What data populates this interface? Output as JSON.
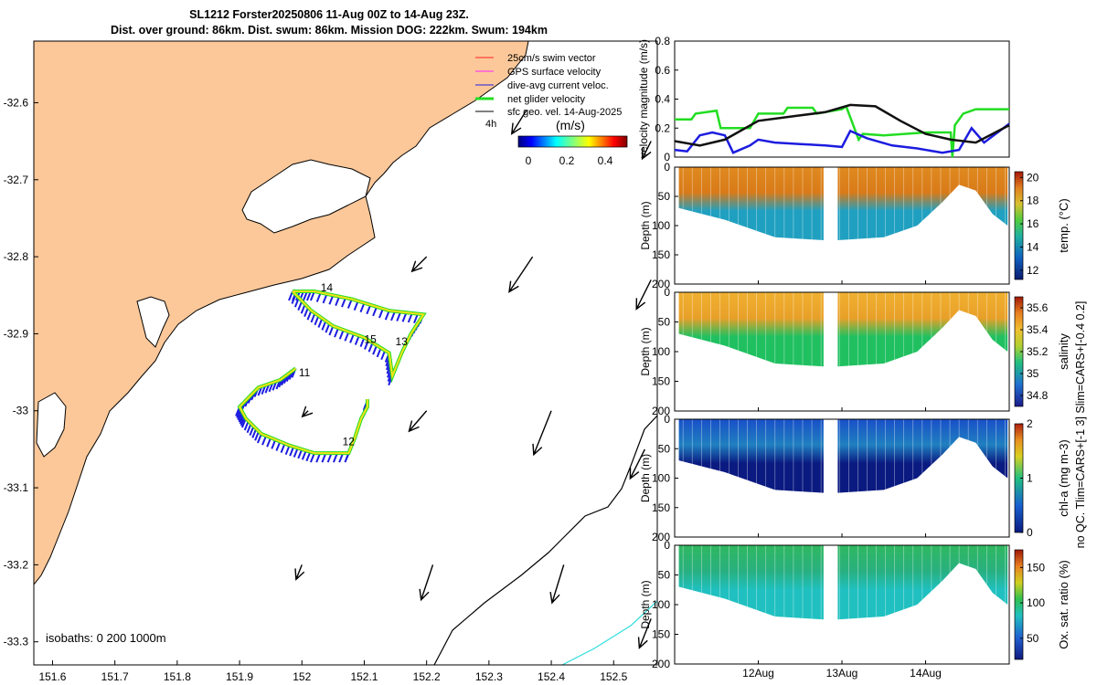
{
  "header": {
    "title_line1": "SL1212 Forster20250806 11-Aug 00Z to 14-Aug 23Z.",
    "title_line2": "Dist. over ground: 86km. Dist. swum: 86km. Mission DOG: 222km. Swum: 194km"
  },
  "colors": {
    "land": "#fcc899",
    "glider_track": "#f2e21a",
    "net_velocity": "#22dd22",
    "current": "#1c1ce0",
    "swim": "#ff2222",
    "gps": "#ff22ff",
    "isobath_200": "#000000",
    "isobath_1000": "#33dddd",
    "velocity_black": "#111111"
  },
  "chart_data": [
    {
      "type": "map",
      "name": "track-map",
      "xlim": [
        151.57,
        152.57
      ],
      "ylim": [
        -33.33,
        -32.52
      ],
      "x_ticks": [
        "151.6",
        "151.7",
        "151.8",
        "151.9",
        "152",
        "152.1",
        "152.2",
        "152.3",
        "152.4",
        "152.5"
      ],
      "x_tick_values": [
        151.6,
        151.7,
        151.8,
        151.9,
        152.0,
        152.1,
        152.2,
        152.3,
        152.4,
        152.5
      ],
      "y_ticks": [
        "-32.6",
        "-32.7",
        "-32.8",
        "-32.9",
        "-33",
        "-33.1",
        "-33.2",
        "-33.3"
      ],
      "y_tick_values": [
        -32.6,
        -32.7,
        -32.8,
        -32.9,
        -33.0,
        -33.1,
        -33.2,
        -33.3
      ],
      "legend": [
        "25cm/s swim vector",
        "GPS surface velocity",
        "dive-avg current veloc.",
        "net glider velocity",
        "sfc geo. vel. 14-Aug-2025"
      ],
      "legend_extra": "4h",
      "colorbar": {
        "label": "(m/s)",
        "ticks": [
          "0",
          "0.2",
          "0.4"
        ],
        "range": [
          0,
          0.5
        ]
      },
      "isobath_note": "isobaths: 0   200   1000m",
      "day_labels": [
        {
          "text": "11",
          "lon": 151.995,
          "lat": -32.955
        },
        {
          "text": "12",
          "lon": 152.065,
          "lat": -33.045
        },
        {
          "text": "13",
          "lon": 152.15,
          "lat": -32.915
        },
        {
          "text": "14",
          "lon": 152.03,
          "lat": -32.845
        },
        {
          "text": "15",
          "lon": 152.1,
          "lat": -32.912
        }
      ],
      "track": [
        [
          151.99,
          -32.945
        ],
        [
          151.965,
          -32.96
        ],
        [
          151.93,
          -32.97
        ],
        [
          151.9,
          -32.995
        ],
        [
          151.91,
          -33.01
        ],
        [
          151.935,
          -33.03
        ],
        [
          151.98,
          -33.045
        ],
        [
          152.02,
          -33.055
        ],
        [
          152.075,
          -33.055
        ],
        [
          152.085,
          -33.035
        ],
        [
          152.095,
          -33.01
        ],
        [
          152.105,
          -32.995
        ],
        [
          152.105,
          -32.985
        ]
      ],
      "track2": [
        [
          151.985,
          -32.845
        ],
        [
          152.02,
          -32.845
        ],
        [
          152.08,
          -32.855
        ],
        [
          152.14,
          -32.87
        ],
        [
          152.195,
          -32.875
        ],
        [
          152.175,
          -32.9
        ],
        [
          152.16,
          -32.925
        ],
        [
          152.145,
          -32.955
        ],
        [
          152.14,
          -32.925
        ],
        [
          152.1,
          -32.905
        ],
        [
          152.05,
          -32.89
        ],
        [
          152.015,
          -32.87
        ],
        [
          151.985,
          -32.845
        ]
      ],
      "geo_vectors": [
        {
          "lon": 152.2,
          "lat": -32.8,
          "u": -0.05,
          "v": -0.05
        },
        {
          "lon": 152.36,
          "lat": -32.61,
          "u": -0.05,
          "v": -0.08
        },
        {
          "lon": 152.37,
          "lat": -32.8,
          "u": -0.08,
          "v": -0.12
        },
        {
          "lon": 152.56,
          "lat": -32.65,
          "u": -0.03,
          "v": -0.06
        },
        {
          "lon": 152.56,
          "lat": -32.83,
          "u": -0.05,
          "v": -0.1
        },
        {
          "lon": 152.01,
          "lat": -33.0,
          "u": -0.02,
          "v": -0.02
        },
        {
          "lon": 152.2,
          "lat": -33.0,
          "u": -0.06,
          "v": -0.07
        },
        {
          "lon": 152.4,
          "lat": -33.0,
          "u": -0.06,
          "v": -0.15
        },
        {
          "lon": 152.55,
          "lat": -33.05,
          "u": -0.05,
          "v": -0.1
        },
        {
          "lon": 152.0,
          "lat": -33.2,
          "u": -0.02,
          "v": -0.05
        },
        {
          "lon": 152.21,
          "lat": -33.2,
          "u": -0.04,
          "v": -0.12
        },
        {
          "lon": 152.42,
          "lat": -33.2,
          "u": -0.04,
          "v": -0.13
        },
        {
          "lon": 152.56,
          "lat": -33.27,
          "u": -0.04,
          "v": -0.1
        }
      ]
    },
    {
      "type": "line",
      "name": "velocity-magnitude",
      "ylabel": "velocity magnitude (m/s)",
      "xlim": [
        0,
        4
      ],
      "ylim": [
        0,
        0.8
      ],
      "y_ticks": [
        "0",
        "0.2",
        "0.4",
        "0.6",
        "0.8"
      ],
      "y_tick_values": [
        0,
        0.2,
        0.4,
        0.6,
        0.8
      ],
      "series": [
        {
          "name": "net glider velocity",
          "color": "#22dd22",
          "x": [
            0,
            0.2,
            0.25,
            0.5,
            0.55,
            0.9,
            1.0,
            1.3,
            1.35,
            1.65,
            1.7,
            2.0,
            2.05,
            2.2,
            2.25,
            2.5,
            3.0,
            3.3,
            3.32,
            3.35,
            3.45,
            3.6,
            4.0
          ],
          "values": [
            0.26,
            0.26,
            0.3,
            0.32,
            0.2,
            0.2,
            0.3,
            0.3,
            0.34,
            0.34,
            0.3,
            0.33,
            0.35,
            0.12,
            0.16,
            0.15,
            0.17,
            0.17,
            0.0,
            0.22,
            0.3,
            0.33,
            0.33
          ]
        },
        {
          "name": "dive-avg current veloc.",
          "color": "#1c1ce0",
          "x": [
            0,
            0.15,
            0.3,
            0.45,
            0.6,
            0.7,
            0.9,
            1.0,
            1.2,
            1.5,
            1.8,
            2.0,
            2.1,
            2.3,
            2.6,
            2.9,
            3.2,
            3.4,
            3.55,
            3.7,
            4.0
          ],
          "values": [
            0.05,
            0.04,
            0.15,
            0.17,
            0.15,
            0.03,
            0.08,
            0.12,
            0.1,
            0.09,
            0.08,
            0.07,
            0.18,
            0.13,
            0.08,
            0.06,
            0.03,
            0.05,
            0.2,
            0.1,
            0.23
          ]
        },
        {
          "name": "sfc geo. vel.",
          "color": "#111111",
          "x": [
            0,
            0.3,
            0.6,
            1.0,
            1.4,
            1.8,
            2.1,
            2.4,
            2.7,
            3.0,
            3.3,
            3.6,
            4.0
          ],
          "values": [
            0.11,
            0.08,
            0.12,
            0.25,
            0.28,
            0.31,
            0.36,
            0.35,
            0.25,
            0.16,
            0.12,
            0.1,
            0.22
          ]
        }
      ]
    },
    {
      "type": "heatmap",
      "name": "temperature-section",
      "ylabel": "Depth (m)",
      "cbar_label": "temp. (°C)",
      "ylim": [
        0,
        200
      ],
      "y_ticks": [
        "0",
        "50",
        "100",
        "150",
        "200"
      ],
      "cbar_ticks": [
        "12",
        "14",
        "16",
        "18",
        "20"
      ],
      "cbar_range": [
        11.2,
        20.5
      ]
    },
    {
      "type": "heatmap",
      "name": "salinity-section",
      "ylabel": "Depth (m)",
      "cbar_label": "salinity",
      "ylim": [
        0,
        200
      ],
      "y_ticks": [
        "0",
        "50",
        "100",
        "150",
        "200"
      ],
      "cbar_ticks": [
        "34.8",
        "35",
        "35.2",
        "35.4",
        "35.6"
      ],
      "cbar_range": [
        34.7,
        35.7
      ]
    },
    {
      "type": "heatmap",
      "name": "chlorophyll-section",
      "ylabel": "Depth (m)",
      "cbar_label": "chl-a (mg m-3)",
      "ylim": [
        0,
        200
      ],
      "y_ticks": [
        "0",
        "50",
        "100",
        "150",
        "200"
      ],
      "cbar_ticks": [
        "0",
        "1",
        "2"
      ],
      "cbar_range": [
        0,
        2
      ]
    },
    {
      "type": "heatmap",
      "name": "oxygen-section",
      "ylabel": "Depth (m)",
      "cbar_label": "Ox. sat. ratio (%)",
      "ylim": [
        0,
        200
      ],
      "y_ticks": [
        "0",
        "50",
        "100",
        "150",
        "200"
      ],
      "x_ticks": [
        "12Aug",
        "13Aug",
        "14Aug"
      ],
      "cbar_ticks": [
        "50",
        "100",
        "150"
      ],
      "cbar_range": [
        20,
        175
      ]
    }
  ],
  "side_note": "no QC. Tlim=CARS+[-1 3] Slim=CARS+[-0.4 0.2]"
}
